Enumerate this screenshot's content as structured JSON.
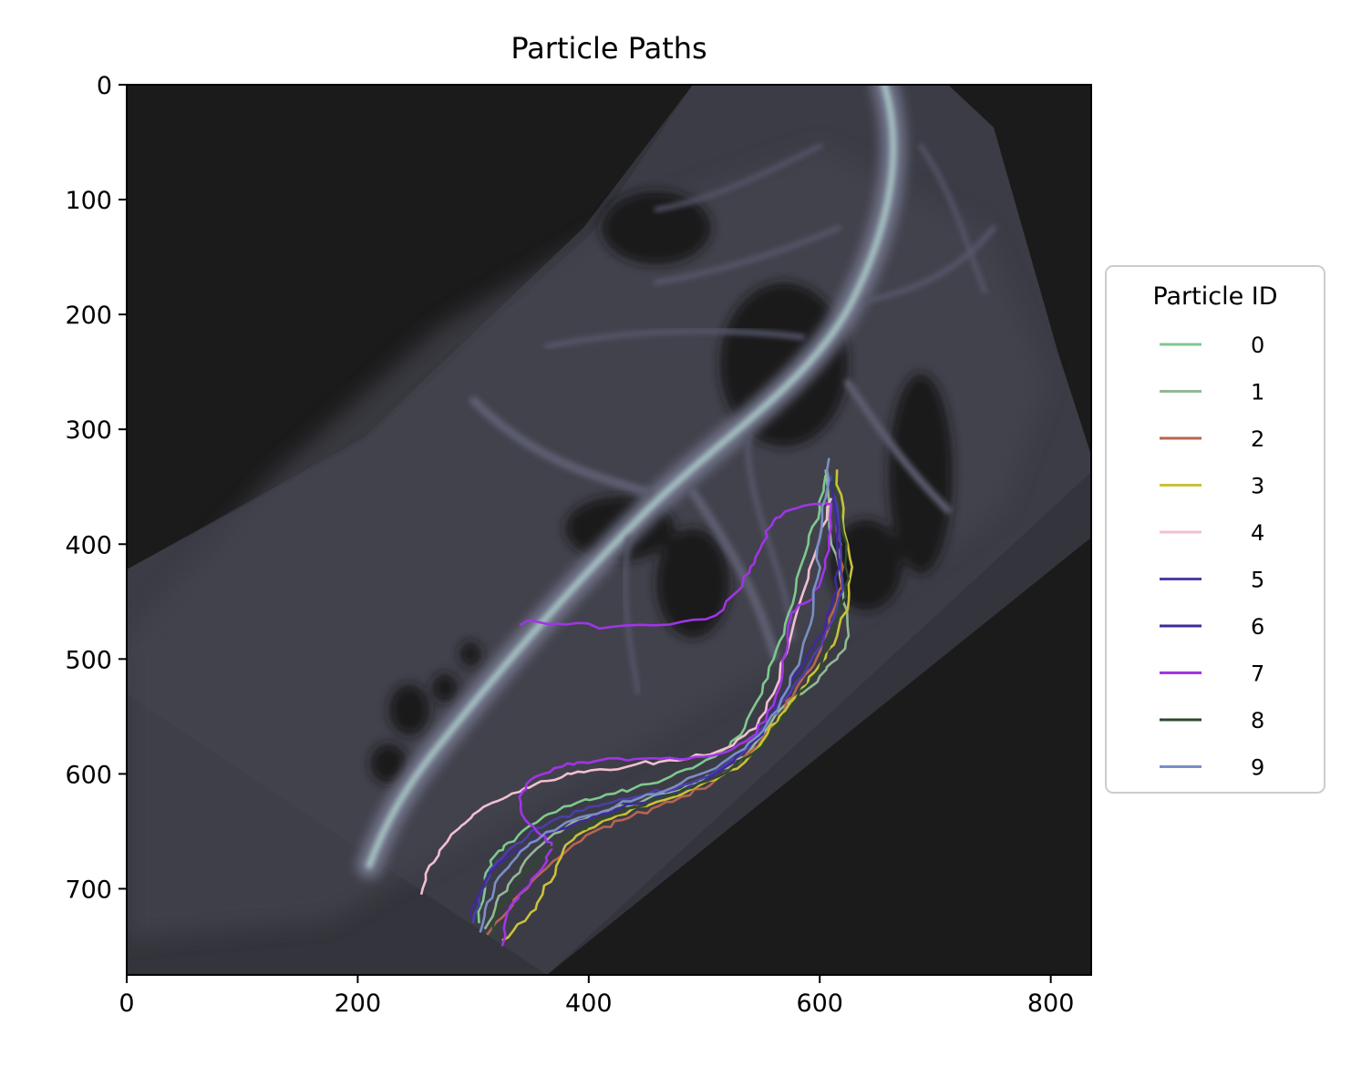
{
  "chart_data": {
    "type": "line",
    "title": "Particle Paths",
    "xlabel": "",
    "ylabel": "",
    "xlim": [
      0,
      835
    ],
    "ylim": [
      775,
      0
    ],
    "x_ticks": [
      0,
      200,
      400,
      600,
      800
    ],
    "y_ticks": [
      0,
      100,
      200,
      300,
      400,
      500,
      600,
      700
    ],
    "background": "terrain image (dark, blue-grey channel network) underlying the particle paths",
    "legend": {
      "title": "Particle ID",
      "placement": "center-right outside axes"
    },
    "series": [
      {
        "name": "0",
        "color": "#7fc98e",
        "x": [
          305,
          310,
          318,
          330,
          345,
          365,
          390,
          415,
          440,
          465,
          490,
          515,
          535,
          550,
          560,
          570,
          580,
          590,
          600,
          605
        ],
        "y": [
          730,
          690,
          672,
          660,
          648,
          635,
          625,
          618,
          612,
          605,
          595,
          580,
          560,
          530,
          500,
          470,
          430,
          400,
          370,
          340
        ]
      },
      {
        "name": "1",
        "color": "#93b893",
        "x": [
          310,
          320,
          335,
          350,
          370,
          395,
          420,
          450,
          480,
          510,
          535,
          555,
          570,
          585,
          600,
          615,
          625,
          620,
          610,
          605
        ],
        "y": [
          735,
          712,
          690,
          670,
          652,
          640,
          630,
          622,
          614,
          600,
          585,
          560,
          540,
          530,
          515,
          500,
          480,
          440,
          400,
          335
        ]
      },
      {
        "name": "2",
        "color": "#b86450",
        "x": [
          312,
          325,
          340,
          360,
          380,
          405,
          430,
          455,
          480,
          505,
          530,
          550,
          565,
          580,
          595,
          605,
          615,
          620,
          615,
          610
        ],
        "y": [
          740,
          725,
          705,
          685,
          668,
          650,
          640,
          630,
          620,
          610,
          590,
          570,
          550,
          525,
          505,
          480,
          450,
          420,
          380,
          345
        ]
      },
      {
        "name": "3",
        "color": "#c9c13a",
        "x": [
          325,
          345,
          360,
          372,
          380,
          400,
          425,
          450,
          480,
          510,
          535,
          555,
          570,
          585,
          600,
          615,
          625,
          628,
          620,
          615
        ],
        "y": [
          745,
          728,
          705,
          680,
          662,
          648,
          636,
          628,
          618,
          605,
          590,
          565,
          545,
          525,
          505,
          480,
          450,
          420,
          380,
          335
        ]
      },
      {
        "name": "4",
        "color": "#f2c0d0",
        "x": [
          255,
          262,
          275,
          290,
          305,
          325,
          345,
          365,
          385,
          410,
          440,
          470,
          500,
          525,
          545,
          560,
          575,
          590,
          600,
          610
        ],
        "y": [
          705,
          680,
          662,
          645,
          632,
          622,
          612,
          606,
          600,
          596,
          592,
          588,
          584,
          575,
          560,
          530,
          480,
          430,
          395,
          360
        ]
      },
      {
        "name": "5",
        "color": "#4a3fa8",
        "x": [
          300,
          308,
          318,
          332,
          350,
          370,
          395,
          420,
          450,
          480,
          510,
          535,
          555,
          570,
          585,
          600,
          612,
          620,
          618,
          610
        ],
        "y": [
          730,
          700,
          680,
          665,
          650,
          640,
          632,
          625,
          618,
          610,
          598,
          580,
          555,
          535,
          515,
          490,
          465,
          440,
          400,
          340
        ]
      },
      {
        "name": "6",
        "color": "#3f2a9a",
        "x": [
          298,
          305,
          312,
          322,
          340,
          360,
          385,
          410,
          440,
          470,
          500,
          525,
          545,
          560,
          575,
          590,
          605,
          615,
          615,
          610
        ],
        "y": [
          725,
          705,
          690,
          678,
          666,
          655,
          645,
          635,
          626,
          618,
          606,
          590,
          570,
          545,
          520,
          495,
          470,
          440,
          400,
          345
        ]
      },
      {
        "name": "7",
        "color": "#a035e6",
        "x": [
          325,
          330,
          345,
          360,
          368,
          355,
          345,
          340,
          350,
          370,
          390,
          410,
          440,
          470,
          500,
          525,
          545,
          560,
          568,
          572,
          575,
          590,
          600,
          608,
          610,
          600,
          575,
          560,
          550,
          540,
          530,
          510,
          470,
          420,
          380,
          350,
          340
        ],
        "y": [
          750,
          720,
          700,
          682,
          660,
          650,
          640,
          620,
          605,
          595,
          590,
          588,
          587,
          586,
          585,
          578,
          565,
          540,
          510,
          480,
          460,
          450,
          435,
          405,
          365,
          365,
          370,
          380,
          400,
          420,
          440,
          462,
          470,
          472,
          470,
          466,
          470
        ]
      },
      {
        "name": "8",
        "color": "#2e4a2e",
        "x": [
          315,
          320,
          332,
          348,
          365,
          385,
          410,
          435,
          460,
          490,
          520,
          545,
          565,
          580,
          595,
          608,
          618,
          625,
          620,
          612
        ],
        "y": [
          742,
          722,
          702,
          682,
          665,
          652,
          640,
          630,
          622,
          612,
          598,
          580,
          555,
          535,
          515,
          490,
          460,
          430,
          390,
          340
        ]
      },
      {
        "name": "9",
        "color": "#7a8fc4",
        "x": [
          306,
          312,
          322,
          338,
          355,
          375,
          400,
          425,
          450,
          480,
          510,
          535,
          555,
          570,
          582,
          592,
          598,
          600,
          605,
          608
        ],
        "y": [
          738,
          712,
          690,
          672,
          658,
          646,
          636,
          627,
          618,
          608,
          595,
          578,
          555,
          530,
          505,
          470,
          430,
          395,
          360,
          325
        ]
      }
    ]
  }
}
